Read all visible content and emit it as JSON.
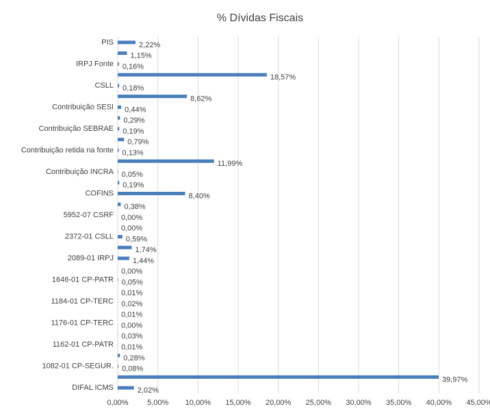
{
  "chart_data": {
    "type": "hbar",
    "title": "% Dívidas Fiscais",
    "categories": [
      "PIS",
      null,
      "IRPJ Fonte",
      null,
      "CSLL",
      null,
      "Contribuição SESI",
      null,
      "Contribuição SEBRAE",
      null,
      "Contribuição retida na fonte",
      null,
      "Contribuição INCRA",
      null,
      "COFINS",
      null,
      "5952-07 CSRF",
      null,
      "2372-01 CSLL",
      null,
      "2089-01 IRPJ",
      null,
      "1646-01 CP-PATR",
      null,
      "1184-01 CP-TERC",
      null,
      "1176-01 CP-TERC",
      null,
      "1162-01 CP-PATR",
      null,
      "1082-01 CP-SEGUR.",
      null,
      "DIFAL ICMS"
    ],
    "values": [
      2.22,
      1.15,
      0.16,
      18.57,
      0.18,
      8.62,
      0.44,
      0.29,
      0.19,
      0.79,
      0.13,
      11.99,
      0.05,
      0.19,
      8.4,
      0.38,
      0.0,
      0.0,
      0.59,
      1.74,
      1.44,
      0.0,
      0.05,
      0.01,
      0.02,
      0.01,
      0.0,
      0.03,
      0.01,
      0.28,
      0.08,
      39.97,
      2.02
    ],
    "value_labels": [
      "2,22%",
      "1,15%",
      "0,16%",
      "18,57%",
      "0,18%",
      "8,62%",
      "0,44%",
      "0,29%",
      "0,19%",
      "0,79%",
      "0,13%",
      "11,99%",
      "0,05%",
      "0,19%",
      "8,40%",
      "0,38%",
      "0,00%",
      "0,00%",
      "0,59%",
      "1,74%",
      "1,44%",
      "0,00%",
      "0,05%",
      "0,01%",
      "0,02%",
      "0,01%",
      "0,00%",
      "0,03%",
      "0,01%",
      "0,28%",
      "0,08%",
      "39,97%",
      "2,02%"
    ],
    "color": "#4a7ebb",
    "xlim": [
      0,
      45
    ],
    "xticks": [
      {
        "value": 0,
        "label": "0,00%"
      },
      {
        "value": 5,
        "label": "5,00%"
      },
      {
        "value": 10,
        "label": "10,00%"
      },
      {
        "value": 15,
        "label": "15,00%"
      },
      {
        "value": 20,
        "label": "20,00%"
      },
      {
        "value": 25,
        "label": "25,00%"
      },
      {
        "value": 30,
        "label": "30,00%"
      },
      {
        "value": 35,
        "label": "35,00%"
      },
      {
        "value": 40,
        "label": "40,00%"
      },
      {
        "value": 45,
        "label": "45,00%"
      }
    ],
    "grid": true
  }
}
